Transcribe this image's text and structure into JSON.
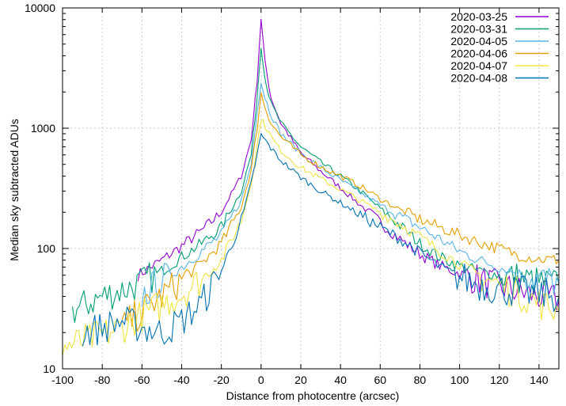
{
  "chart_data": {
    "type": "line",
    "title": "",
    "xlabel": "Distance from photocentre (arcsec)",
    "ylabel": "Median sky subtracted ADUs",
    "xlim": [
      -100,
      150
    ],
    "ylim": [
      10,
      10000
    ],
    "yscale": "log",
    "grid": true,
    "legend_position": "top-right",
    "x_ticks": [
      -100,
      -80,
      -60,
      -40,
      -20,
      0,
      20,
      40,
      60,
      80,
      100,
      120,
      140
    ],
    "x_tick_labels": [
      "-100",
      "-80",
      "-60",
      "-40",
      "-20",
      "0",
      "20",
      "40",
      "60",
      "80",
      "100",
      "120",
      "140"
    ],
    "y_ticks": [
      10,
      100,
      1000,
      10000
    ],
    "y_tick_labels": [
      "10",
      "100",
      "1000",
      "10000"
    ],
    "series": [
      {
        "name": "2020-03-25",
        "color": "#9400d3",
        "x": [
          -62,
          -50,
          -40,
          -30,
          -20,
          -10,
          -5,
          -2,
          0,
          2,
          5,
          10,
          20,
          30,
          40,
          50,
          60,
          70,
          80,
          90,
          100,
          110,
          120,
          130,
          140,
          150
        ],
        "y": [
          60,
          80,
          105,
          140,
          200,
          400,
          800,
          2500,
          8200,
          3500,
          1800,
          1100,
          620,
          440,
          320,
          230,
          165,
          120,
          90,
          72,
          62,
          55,
          48,
          44,
          40,
          37
        ]
      },
      {
        "name": "2020-03-31",
        "color": "#009e73",
        "x": [
          -95,
          -80,
          -70,
          -60,
          -50,
          -40,
          -30,
          -20,
          -10,
          -5,
          -2,
          0,
          2,
          5,
          10,
          20,
          30,
          40,
          50,
          60,
          70,
          80,
          90,
          100,
          110,
          120,
          130,
          140,
          150
        ],
        "y": [
          30,
          40,
          45,
          52,
          65,
          85,
          110,
          150,
          300,
          600,
          1800,
          4900,
          2600,
          1600,
          1100,
          700,
          520,
          400,
          300,
          215,
          155,
          110,
          85,
          72,
          65,
          60,
          57,
          52,
          50
        ]
      },
      {
        "name": "2020-04-05",
        "color": "#56b4e9",
        "x": [
          -60,
          -50,
          -40,
          -30,
          -20,
          -10,
          -5,
          -2,
          0,
          2,
          5,
          10,
          20,
          30,
          40,
          50,
          60,
          70,
          80,
          90,
          100,
          110,
          120,
          130,
          140,
          150
        ],
        "y": [
          40,
          55,
          70,
          95,
          130,
          250,
          500,
          1400,
          2400,
          1800,
          1300,
          900,
          620,
          470,
          370,
          290,
          230,
          185,
          150,
          120,
          95,
          80,
          70,
          62,
          56,
          52
        ]
      },
      {
        "name": "2020-04-06",
        "color": "#e69f00",
        "x": [
          -70,
          -60,
          -50,
          -40,
          -30,
          -20,
          -10,
          -5,
          -2,
          0,
          2,
          5,
          10,
          20,
          30,
          40,
          50,
          60,
          70,
          80,
          90,
          100,
          110,
          120,
          130,
          140,
          150
        ],
        "y": [
          22,
          30,
          40,
          55,
          75,
          110,
          220,
          450,
          1000,
          1950,
          1500,
          1100,
          850,
          600,
          480,
          400,
          330,
          260,
          210,
          175,
          150,
          130,
          112,
          100,
          88,
          82,
          80
        ]
      },
      {
        "name": "2020-04-07",
        "color": "#f0e442",
        "x": [
          -100,
          -85,
          -70,
          -60,
          -50,
          -40,
          -30,
          -20,
          -10,
          -5,
          -2,
          0,
          2,
          5,
          10,
          20,
          30,
          40,
          50,
          60,
          70,
          80,
          90,
          100,
          110,
          120,
          130,
          140,
          150
        ],
        "y": [
          15,
          18,
          22,
          28,
          34,
          42,
          55,
          80,
          170,
          350,
          700,
          1200,
          1050,
          850,
          650,
          470,
          380,
          310,
          250,
          200,
          160,
          125,
          95,
          75,
          60,
          50,
          42,
          35,
          30
        ]
      },
      {
        "name": "2020-04-08",
        "color": "#0072b2",
        "x": [
          -90,
          -80,
          -70,
          -60,
          -50,
          -40,
          -30,
          -20,
          -10,
          -5,
          -2,
          0,
          2,
          5,
          10,
          20,
          30,
          40,
          50,
          60,
          70,
          80,
          90,
          100,
          110,
          120,
          130,
          140,
          150
        ],
        "y": [
          20,
          22,
          25,
          22,
          20,
          25,
          35,
          65,
          170,
          350,
          600,
          880,
          800,
          680,
          540,
          390,
          300,
          240,
          190,
          150,
          120,
          92,
          70,
          58,
          50,
          46,
          44,
          42,
          40
        ]
      }
    ]
  }
}
